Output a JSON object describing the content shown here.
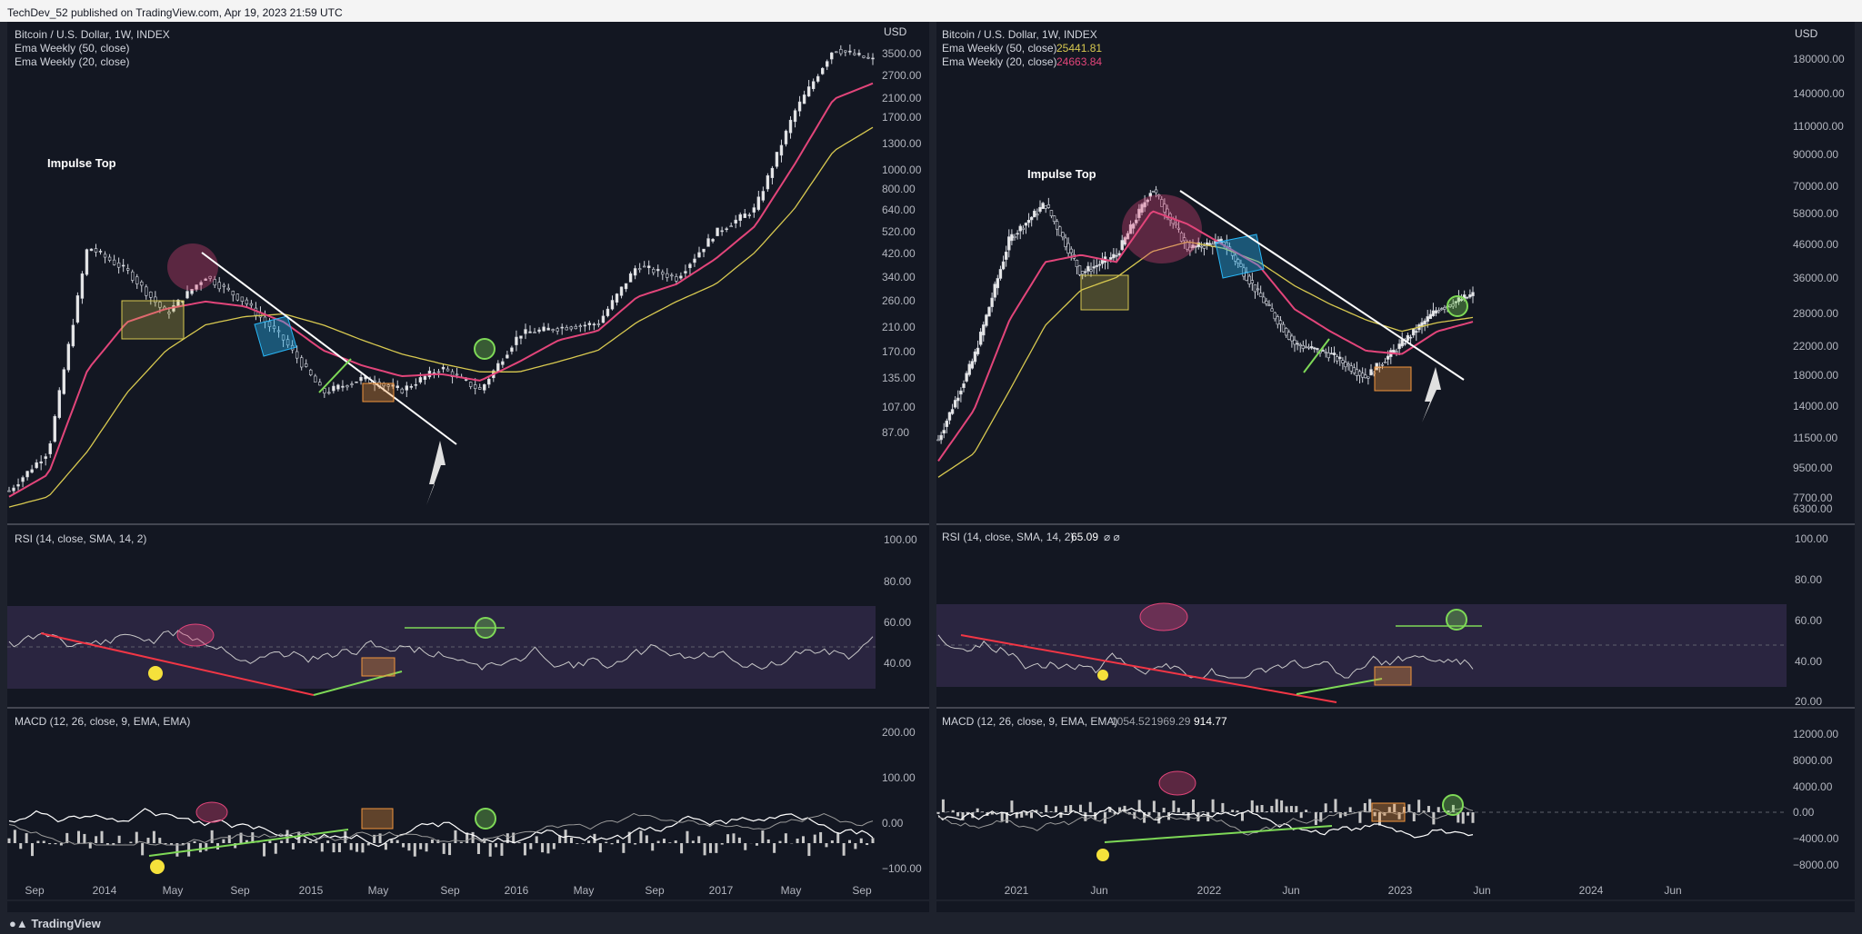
{
  "header": {
    "published": "TechDev_52 published on TradingView.com, Apr 19, 2023 21:59 UTC"
  },
  "footer": {
    "brand": "TradingView",
    "logo_icon": "tradingview-logo-icon"
  },
  "colors": {
    "background": "#131722",
    "frame": "#1e222d",
    "price": "#d1d4dc",
    "ema50": "#d8c950",
    "ema20": "#e2457a",
    "trendline": "#ffffff",
    "rsi_divergence": "#f23645",
    "bull_line": "#7ed957",
    "rsi_band": "#2a2540",
    "yellow_dot": "#f5e13b"
  },
  "left_chart": {
    "title": "Bitcoin / U.S. Dollar, 1W, INDEX",
    "ema50_label": "Ema Weekly (50, close)",
    "ema20_label": "Ema Weekly (20, close)",
    "currency": "USD",
    "annotation": "Impulse Top",
    "price_ticks": [
      "3500.00",
      "2700.00",
      "2100.00",
      "1700.00",
      "1300.00",
      "1000.00",
      "800.00",
      "640.00",
      "520.00",
      "420.00",
      "340.00",
      "260.00",
      "210.00",
      "170.00",
      "135.00",
      "107.00",
      "87.00"
    ],
    "rsi_title": "RSI (14, close, SMA, 14, 2)",
    "rsi_ticks": [
      "100.00",
      "80.00",
      "60.00",
      "40.00"
    ],
    "macd_title": "MACD (12, 26, close, 9, EMA, EMA)",
    "macd_ticks": [
      "200.00",
      "100.00",
      "0.00",
      "−100.00"
    ],
    "time_ticks": [
      "Sep",
      "2014",
      "May",
      "Sep",
      "2015",
      "May",
      "Sep",
      "2016",
      "May",
      "Sep",
      "2017",
      "May",
      "Sep"
    ]
  },
  "right_chart": {
    "title": "Bitcoin / U.S. Dollar, 1W, INDEX",
    "ema50_label": "Ema Weekly (50, close)",
    "ema50_value": "25441.81",
    "ema20_label": "Ema Weekly (20, close)",
    "ema20_value": "24663.84",
    "currency": "USD",
    "annotation": "Impulse Top",
    "price_ticks": [
      "180000.00",
      "140000.00",
      "110000.00",
      "90000.00",
      "70000.00",
      "58000.00",
      "46000.00",
      "36000.00",
      "28000.00",
      "22000.00",
      "18000.00",
      "14000.00",
      "11500.00",
      "9500.00",
      "7700.00",
      "6300.00"
    ],
    "rsi_title": "RSI (14, close, SMA, 14, 2)",
    "rsi_value": "65.09",
    "rsi_extra": "⌀ ⌀",
    "rsi_ticks": [
      "100.00",
      "80.00",
      "60.00",
      "40.00",
      "20.00"
    ],
    "macd_title": "MACD (12, 26, close, 9, EMA, EMA)",
    "macd_v1": "1054.52",
    "macd_v2": "1969.29",
    "macd_v3": "914.77",
    "macd_ticks": [
      "12000.00",
      "8000.00",
      "4000.00",
      "0.00",
      "−4000.00",
      "−8000.00"
    ],
    "time_ticks": [
      "2021",
      "Jun",
      "2022",
      "Jun",
      "2023",
      "Jun",
      "2024",
      "Jun"
    ]
  },
  "chart_data": [
    {
      "type": "line",
      "title": "Bitcoin / U.S. Dollar, 1W, INDEX",
      "xlabel": "",
      "ylabel": "USD",
      "log_scale": true,
      "ylim": [
        80,
        5000
      ],
      "x": [
        "2013-08",
        "2013-10",
        "2013-12",
        "2014-02",
        "2014-04",
        "2014-06",
        "2014-08",
        "2014-10",
        "2015-01",
        "2015-03",
        "2015-05",
        "2015-07",
        "2015-09",
        "2015-11",
        "2016-01",
        "2016-03",
        "2016-06",
        "2016-09",
        "2016-12",
        "2017-03",
        "2017-06",
        "2017-08",
        "2017-09"
      ],
      "series": [
        {
          "values": [
            100,
            140,
            800,
            650,
            450,
            620,
            500,
            360,
            230,
            260,
            235,
            285,
            235,
            380,
            400,
            415,
            680,
            610,
            900,
            1100,
            2500,
            4300,
            3900
          ]
        },
        {
          "values": [
            95,
            115,
            280,
            420,
            470,
            500,
            480,
            420,
            330,
            290,
            265,
            270,
            255,
            300,
            360,
            390,
            520,
            580,
            720,
            950,
            1600,
            2800,
            3200
          ]
        },
        {
          "values": [
            87,
            95,
            140,
            230,
            330,
            410,
            440,
            450,
            410,
            360,
            320,
            295,
            275,
            275,
            300,
            330,
            420,
            500,
            580,
            760,
            1100,
            1800,
            2200
          ]
        }
      ]
    },
    {
      "type": "line",
      "title": "Bitcoin / U.S. Dollar, 1W, INDEX",
      "xlabel": "",
      "ylabel": "USD",
      "log_scale": true,
      "ylim": [
        6000,
        200000
      ],
      "x": [
        "2020-09",
        "2020-12",
        "2021-02",
        "2021-04",
        "2021-06",
        "2021-08",
        "2021-11",
        "2022-01",
        "2022-03",
        "2022-05",
        "2022-07",
        "2022-09",
        "2022-11",
        "2023-01",
        "2023-03",
        "2023-04"
      ],
      "series": [
        {
          "values": [
            10500,
            19000,
            45000,
            58000,
            35000,
            40000,
            65000,
            42000,
            44000,
            30000,
            21000,
            19500,
            16500,
            21000,
            27000,
            30000
          ]
        },
        {
          "values": [
            9000,
            13000,
            25000,
            38000,
            40000,
            38000,
            55000,
            50000,
            43000,
            37000,
            27000,
            23000,
            20000,
            19500,
            23000,
            24663.84
          ]
        },
        {
          "values": [
            8000,
            9500,
            15000,
            24000,
            31000,
            34000,
            41000,
            44000,
            42000,
            38000,
            32000,
            28000,
            25000,
            23000,
            24500,
            25441.81
          ]
        }
      ]
    }
  ]
}
